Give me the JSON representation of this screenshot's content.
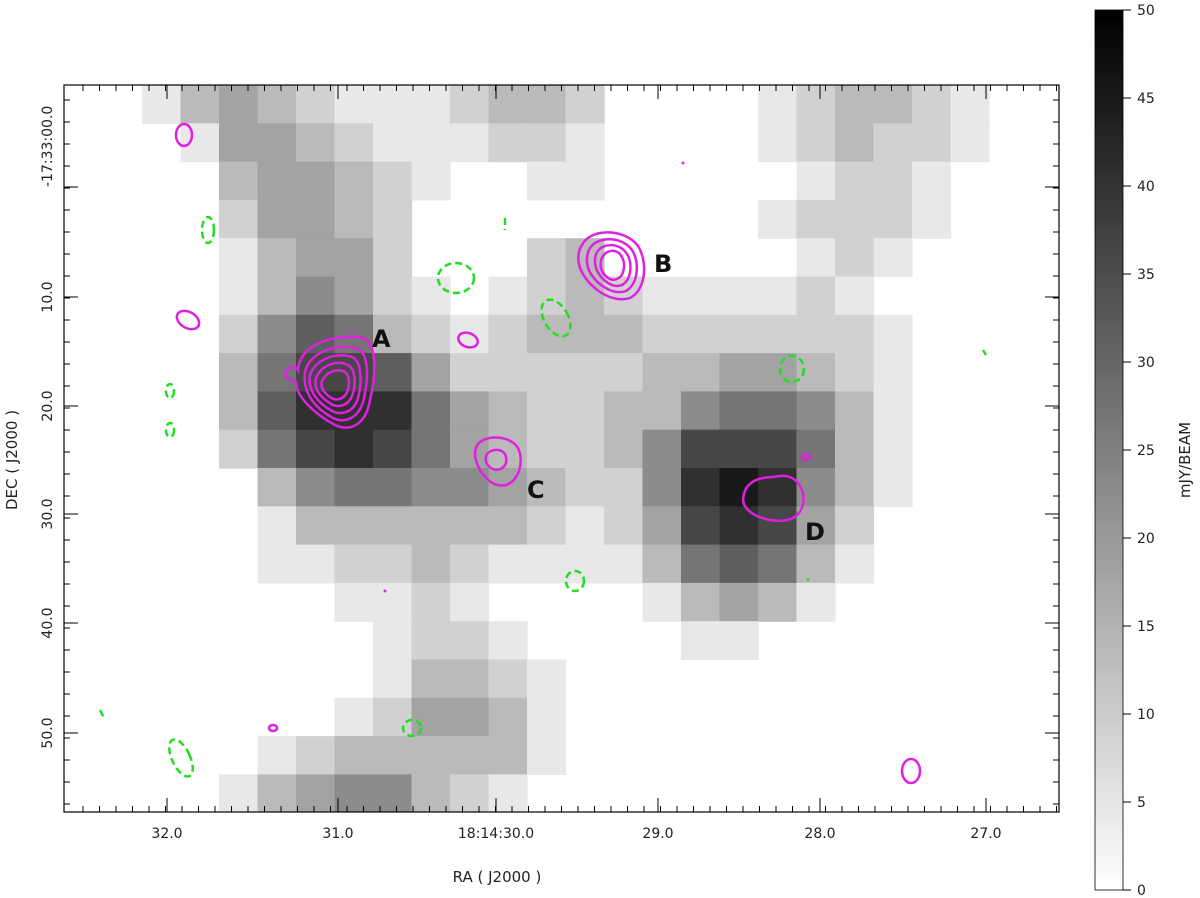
{
  "figure": {
    "x_axis_title": "RA ( J2000 )",
    "y_axis_title": "DEC ( J2000 )",
    "colorbar_title": "mJY/BEAM",
    "x_ticks": [
      "32.0",
      "31.0",
      "18:14:30.0",
      "29.0",
      "28.0",
      "27.0"
    ],
    "y_ticks": [
      "-17:33:00.0",
      "10.0",
      "20.0",
      "30.0",
      "40.0",
      "50.0"
    ],
    "colorbar_ticks": [
      "0",
      "5",
      "10",
      "15",
      "20",
      "25",
      "30",
      "35",
      "40",
      "45",
      "50"
    ],
    "colorbar_range": [
      0,
      50
    ],
    "source_labels": [
      "A",
      "B",
      "C",
      "D"
    ],
    "colors": {
      "positive_contour": "#e020e0",
      "negative_contour": "#22dd22",
      "frame": "#000000"
    }
  }
}
